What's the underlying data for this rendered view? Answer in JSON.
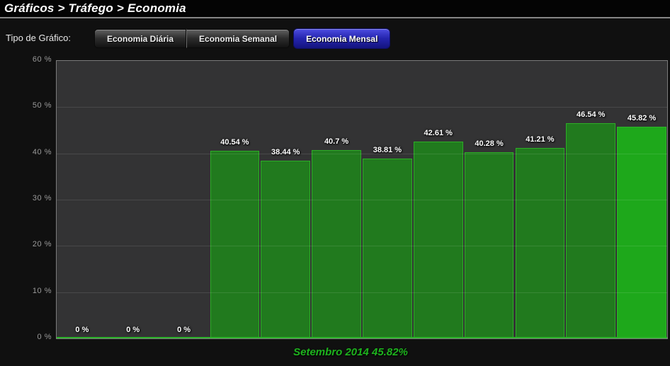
{
  "breadcrumb": "Gráficos > Tráfego > Economia",
  "controls": {
    "label": "Tipo de Gráfico:",
    "tabs": [
      {
        "id": "tab-economia-diaria",
        "label": "Economia Diária",
        "active": false
      },
      {
        "id": "tab-economia-semanal",
        "label": "Economia Semanal",
        "active": false
      },
      {
        "id": "tab-economia-mensal",
        "label": "Economia Mensal",
        "active": true
      }
    ]
  },
  "chart_data": {
    "type": "bar",
    "title": "",
    "xlabel": "",
    "ylabel": "%",
    "ylim": [
      0,
      60
    ],
    "grid": true,
    "values": [
      0,
      0,
      0,
      40.54,
      38.44,
      40.7,
      38.81,
      42.61,
      40.28,
      41.21,
      46.54,
      45.82
    ],
    "bar_labels": [
      "0 %",
      "0 %",
      "0 %",
      "40.54 %",
      "38.44 %",
      "40.7 %",
      "38.81 %",
      "42.61 %",
      "40.28 %",
      "41.21 %",
      "46.54 %",
      "45.82 %"
    ],
    "ytick_values": [
      60,
      50,
      40,
      30,
      20,
      10,
      0
    ],
    "ytick_labels": [
      "60 %",
      "50 %",
      "40 %",
      "30 %",
      "20 %",
      "10 %",
      "0 %"
    ],
    "gridline_values": [
      50,
      40,
      30,
      20,
      10
    ],
    "highlight_index": 11,
    "caption": "Setembro 2014 45.82%"
  },
  "colors": {
    "bar_fill": "#217a1e",
    "bar_border": "#2dad27",
    "bar_highlight_fill": "#1ea81b",
    "baseline_green": "#2db32a",
    "caption_green": "#1db31d",
    "active_tab_blue": "#2424ad",
    "plot_background": "#333334",
    "page_background": "#101010"
  }
}
